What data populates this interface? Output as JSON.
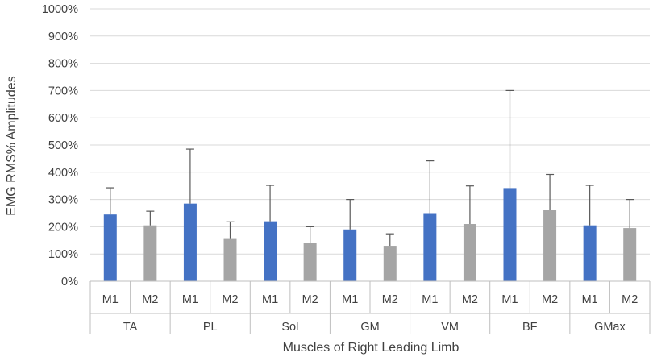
{
  "chart_data": {
    "type": "bar",
    "title": "",
    "xlabel": "Muscles of Right Leading Limb",
    "ylabel": "EMG RMS% Amplitudes",
    "ylim": [
      0,
      1000
    ],
    "yticks": [
      0,
      100,
      200,
      300,
      400,
      500,
      600,
      700,
      800,
      900,
      1000
    ],
    "ytick_labels": [
      "0%",
      "100%",
      "200%",
      "300%",
      "400%",
      "500%",
      "600%",
      "700%",
      "800%",
      "900%",
      "1000%"
    ],
    "grid": true,
    "groups": [
      "TA",
      "PL",
      "Sol",
      "GM",
      "VM",
      "BF",
      "GMax"
    ],
    "subcategories": [
      "M1",
      "M2"
    ],
    "colors": {
      "M1": "#4472C4",
      "M2": "#A5A5A5",
      "error": "#595959",
      "grid": "#D9D9D9",
      "axis": "#BFBFBF"
    },
    "bars": [
      {
        "group": "TA",
        "sub": "M1",
        "value": 245,
        "error": 98
      },
      {
        "group": "TA",
        "sub": "M2",
        "value": 205,
        "error": 52
      },
      {
        "group": "PL",
        "sub": "M1",
        "value": 285,
        "error": 200
      },
      {
        "group": "PL",
        "sub": "M2",
        "value": 158,
        "error": 60
      },
      {
        "group": "Sol",
        "sub": "M1",
        "value": 220,
        "error": 132
      },
      {
        "group": "Sol",
        "sub": "M2",
        "value": 140,
        "error": 60
      },
      {
        "group": "GM",
        "sub": "M1",
        "value": 190,
        "error": 110
      },
      {
        "group": "GM",
        "sub": "M2",
        "value": 130,
        "error": 44
      },
      {
        "group": "VM",
        "sub": "M1",
        "value": 250,
        "error": 192
      },
      {
        "group": "VM",
        "sub": "M2",
        "value": 210,
        "error": 140
      },
      {
        "group": "BF",
        "sub": "M1",
        "value": 342,
        "error": 358
      },
      {
        "group": "BF",
        "sub": "M2",
        "value": 262,
        "error": 130
      },
      {
        "group": "GMax",
        "sub": "M1",
        "value": 205,
        "error": 147
      },
      {
        "group": "GMax",
        "sub": "M2",
        "value": 195,
        "error": 105
      }
    ]
  }
}
